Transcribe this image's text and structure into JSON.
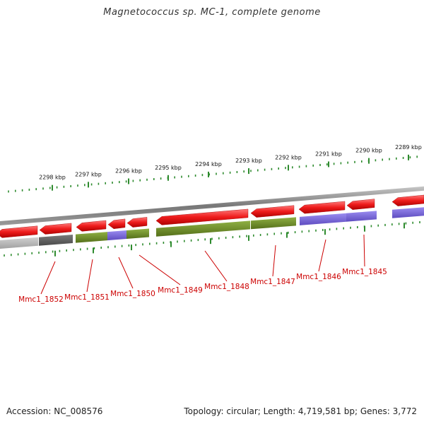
{
  "title": "Magnetococcus sp. MC-1, complete genome",
  "footer": {
    "accession": "Accession: NC_008576",
    "summary": "Topology: circular; Length: 4,719,581 bp; Genes: 3,772"
  },
  "colors": {
    "forward_cds": "#ee1c1c",
    "green_category": "#6b8e23",
    "purple_category": "#7a68d0",
    "gray_category": "#b3b3b3",
    "dark_gray_category": "#606060",
    "backbone": "#888888",
    "tick": "#2e8b2e",
    "gene_label": "#cc0000"
  },
  "kbp_ticks": [
    {
      "label": "2298 kbp"
    },
    {
      "label": "2297 kbp"
    },
    {
      "label": "2296 kbp"
    },
    {
      "label": "2295 kbp"
    },
    {
      "label": "2294 kbp"
    },
    {
      "label": "2293 kbp"
    },
    {
      "label": "2292 kbp"
    },
    {
      "label": "2291 kbp"
    },
    {
      "label": "2290 kbp"
    },
    {
      "label": "2289 kbp"
    }
  ],
  "genes": [
    {
      "label": "Mmc1_1852",
      "category": "dark_gray_category"
    },
    {
      "label": "Mmc1_1851",
      "category": "green_category"
    },
    {
      "label": "Mmc1_1850",
      "category": "purple_category"
    },
    {
      "label": "Mmc1_1849",
      "category": "green_category"
    },
    {
      "label": "Mmc1_1848",
      "category": "green_category"
    },
    {
      "label": "Mmc1_1847",
      "category": "green_category"
    },
    {
      "label": "Mmc1_1846",
      "category": "purple_category"
    },
    {
      "label": "Mmc1_1845",
      "category": "purple_category"
    }
  ]
}
